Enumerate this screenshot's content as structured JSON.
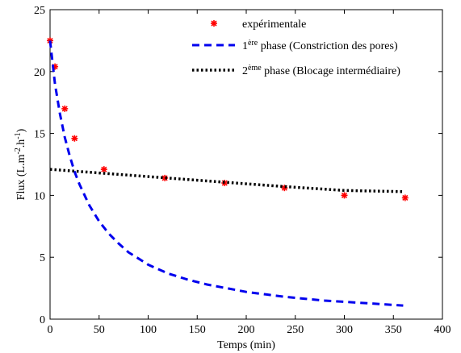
{
  "chart_data": {
    "type": "line",
    "xlabel": "Temps (min)",
    "ylabel_main": "Flux (L.m",
    "ylabel_sup1": "-2",
    "ylabel_mid": ".h",
    "ylabel_sup2": "-1",
    "ylabel_end": ")",
    "xlim": [
      0,
      400
    ],
    "ylim": [
      0,
      25
    ],
    "x_ticks": [
      0,
      50,
      100,
      150,
      200,
      250,
      300,
      350,
      400
    ],
    "y_ticks": [
      0,
      5,
      10,
      15,
      20,
      25
    ],
    "grid": false,
    "legend_position": "top-right",
    "legend": {
      "s1_label": "expérimentale",
      "s2_pre": "1",
      "s2_sup": "ère",
      "s2_post": " phase (Constriction des pores)",
      "s3_pre": "2",
      "s3_sup": "ème",
      "s3_post": " phase (Blocage intermédiaire)"
    },
    "series": [
      {
        "name": "expérimentale",
        "style": "points",
        "color": "#ff0000",
        "points": [
          [
            0,
            22.5
          ],
          [
            5,
            20.4
          ],
          [
            15,
            17.0
          ],
          [
            25,
            14.6
          ],
          [
            55,
            12.1
          ],
          [
            117,
            11.4
          ],
          [
            178,
            11.0
          ],
          [
            239,
            10.6
          ],
          [
            300,
            10.0
          ],
          [
            362,
            9.8
          ]
        ]
      },
      {
        "name": "1ère phase (Constriction des pores)",
        "style": "dashed",
        "color": "#0000ee",
        "points": [
          [
            0,
            22.5
          ],
          [
            5,
            19.0
          ],
          [
            10,
            16.6
          ],
          [
            15,
            14.7
          ],
          [
            20,
            13.2
          ],
          [
            25,
            11.9
          ],
          [
            30,
            10.9
          ],
          [
            40,
            9.2
          ],
          [
            50,
            7.9
          ],
          [
            60,
            6.9
          ],
          [
            70,
            6.1
          ],
          [
            80,
            5.4
          ],
          [
            90,
            4.9
          ],
          [
            100,
            4.4
          ],
          [
            120,
            3.7
          ],
          [
            140,
            3.2
          ],
          [
            160,
            2.8
          ],
          [
            180,
            2.5
          ],
          [
            200,
            2.2
          ],
          [
            220,
            2.0
          ],
          [
            240,
            1.8
          ],
          [
            260,
            1.65
          ],
          [
            280,
            1.5
          ],
          [
            300,
            1.4
          ],
          [
            320,
            1.3
          ],
          [
            340,
            1.2
          ],
          [
            360,
            1.1
          ]
        ]
      },
      {
        "name": "2ème phase (Blocage intermédiaire)",
        "style": "dotted",
        "color": "#000000",
        "points": [
          [
            0,
            12.1
          ],
          [
            60,
            11.75
          ],
          [
            120,
            11.4
          ],
          [
            180,
            11.05
          ],
          [
            240,
            10.7
          ],
          [
            300,
            10.4
          ],
          [
            360,
            10.3
          ]
        ]
      }
    ]
  }
}
